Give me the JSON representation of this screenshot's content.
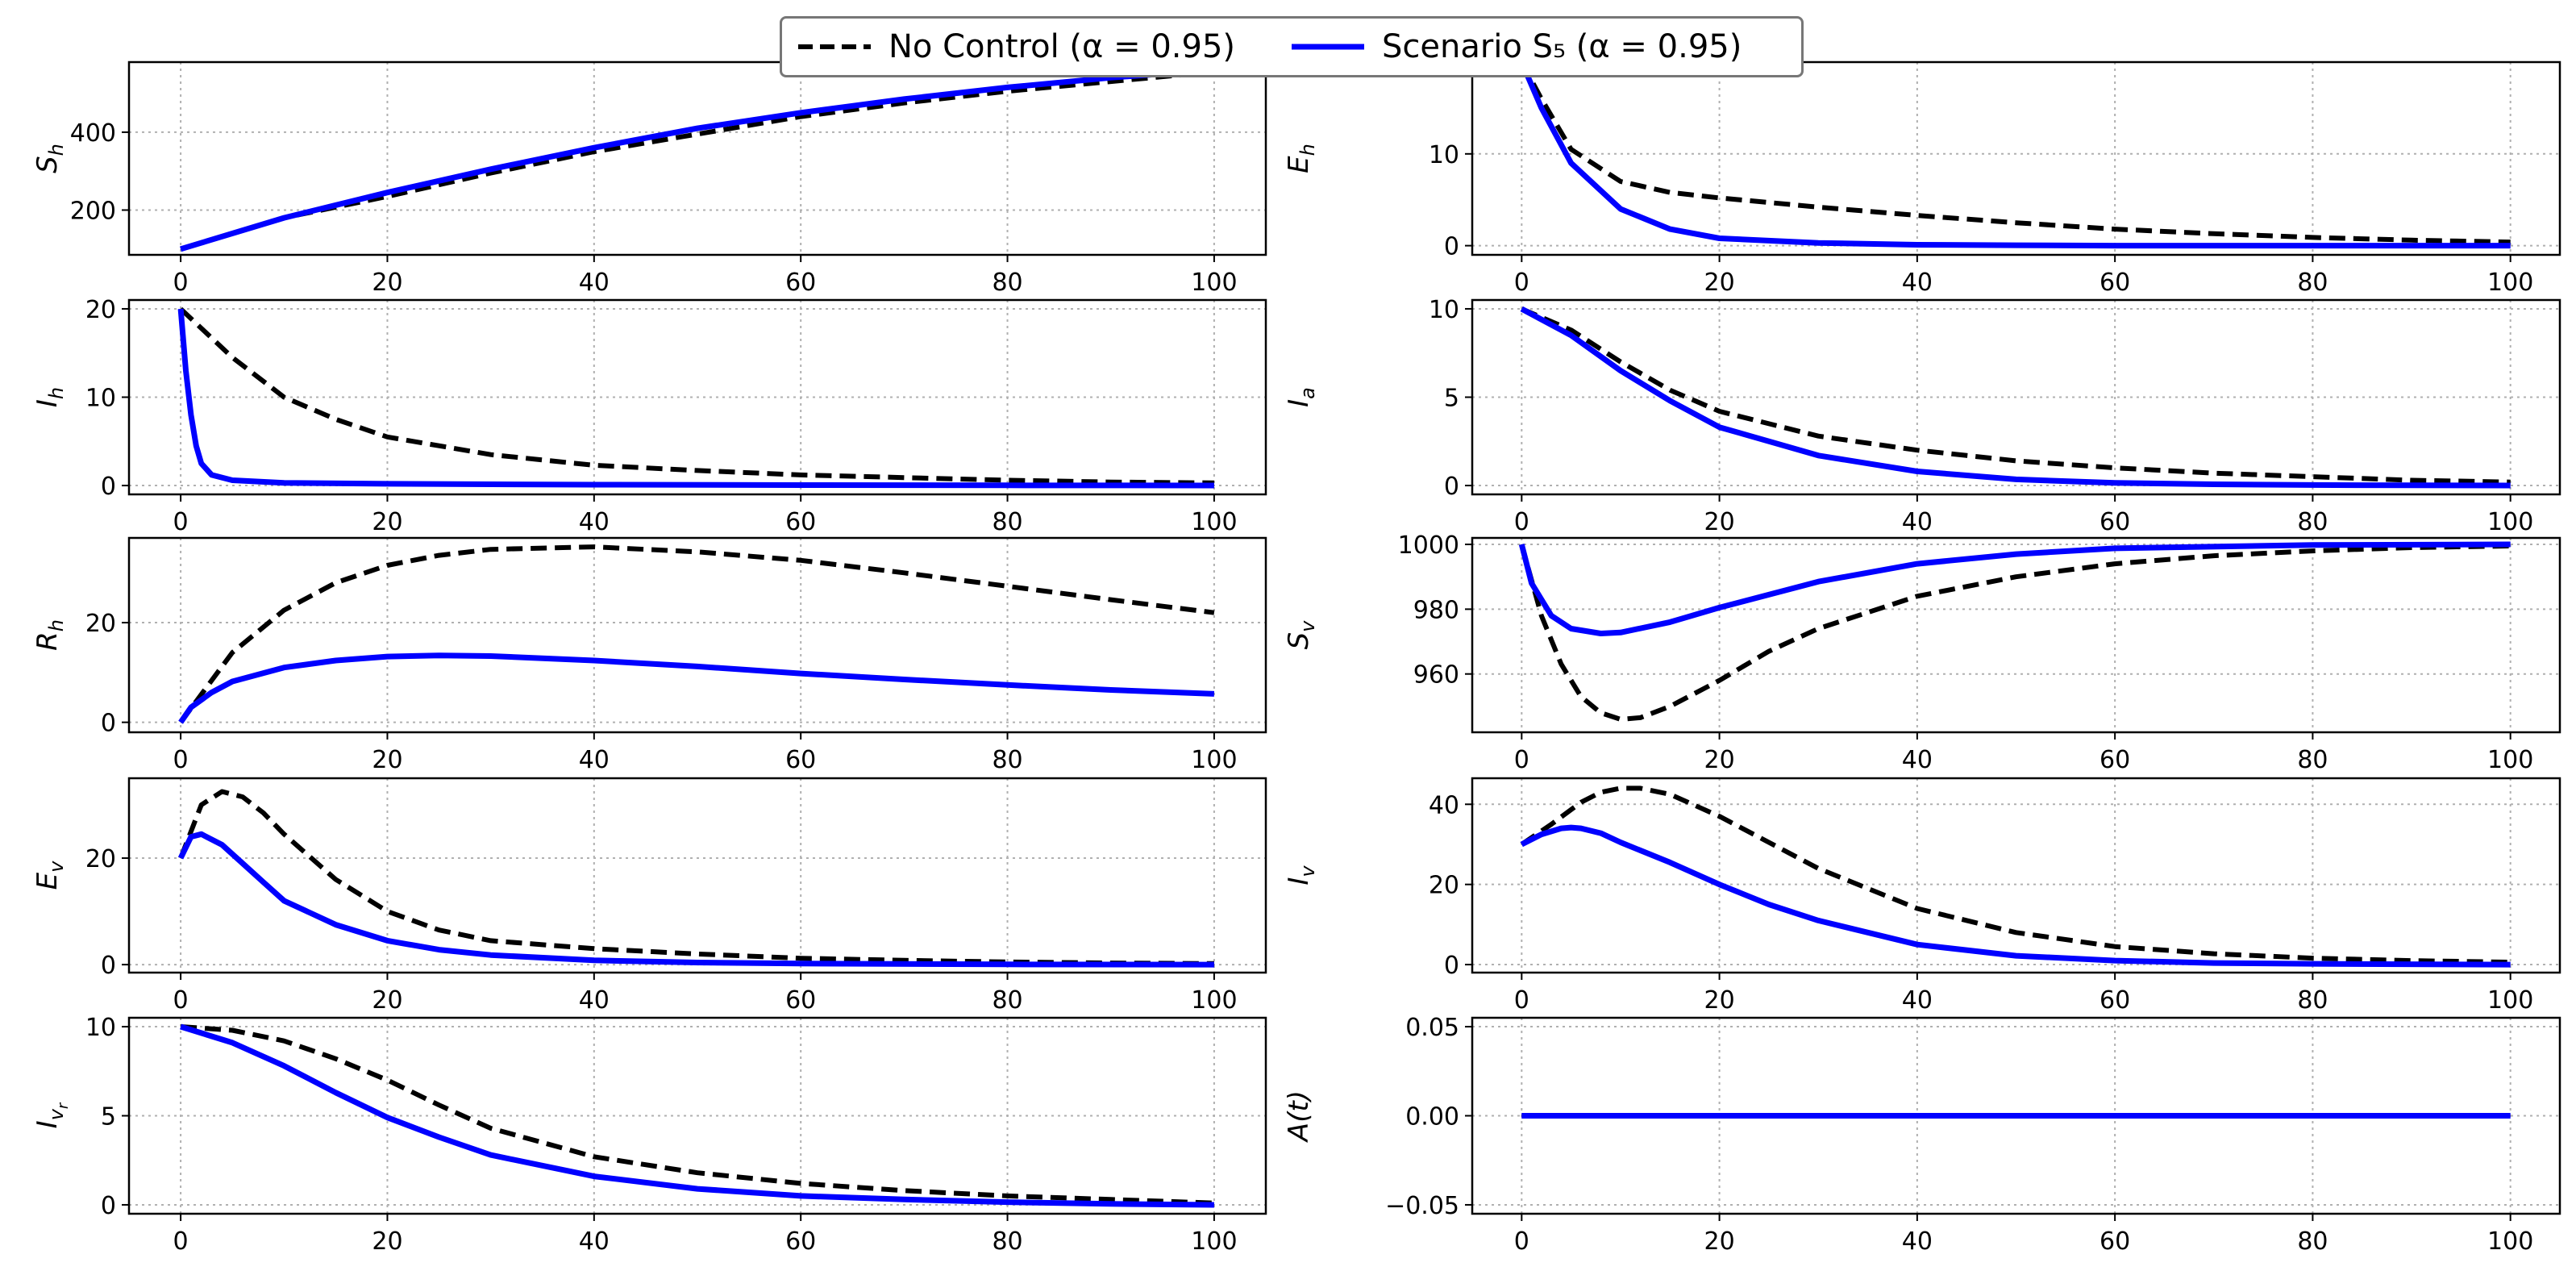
{
  "legend": {
    "series_a": "No Control (α = 0.95)",
    "series_b": "Scenario S₅ (α = 0.95)"
  },
  "colors": {
    "no_control": "#000000",
    "scenario": "#0000ff",
    "grid": "#b0b0b0"
  },
  "chart_data": [
    {
      "type": "line",
      "id": "Sh",
      "ylabel": "S_h",
      "xlim": [
        -5,
        105
      ],
      "ylim": [
        85,
        580
      ],
      "xticks": [
        0,
        20,
        40,
        60,
        80,
        100
      ],
      "yticks": [
        200,
        400
      ],
      "series": [
        {
          "name": "No Control (α = 0.95)",
          "x": [
            0,
            10,
            20,
            30,
            40,
            50,
            60,
            70,
            80,
            90,
            100
          ],
          "y": [
            100,
            180,
            235,
            295,
            350,
            395,
            440,
            475,
            505,
            530,
            555
          ]
        },
        {
          "name": "Scenario S5 (α = 0.95)",
          "x": [
            0,
            10,
            20,
            30,
            40,
            50,
            60,
            70,
            80,
            90,
            100
          ],
          "y": [
            100,
            180,
            245,
            305,
            360,
            410,
            450,
            485,
            515,
            540,
            560
          ]
        }
      ]
    },
    {
      "type": "line",
      "id": "Eh",
      "ylabel": "E_h",
      "xlim": [
        -5,
        105
      ],
      "ylim": [
        -1,
        20
      ],
      "xticks": [
        0,
        20,
        40,
        60,
        80,
        100
      ],
      "yticks": [
        0,
        10
      ],
      "series": [
        {
          "name": "No Control (α = 0.95)",
          "x": [
            0,
            2,
            5,
            10,
            15,
            20,
            30,
            40,
            50,
            60,
            70,
            80,
            90,
            100
          ],
          "y": [
            20,
            16,
            10.5,
            7,
            5.8,
            5.2,
            4.2,
            3.3,
            2.5,
            1.8,
            1.3,
            0.9,
            0.6,
            0.4
          ]
        },
        {
          "name": "Scenario S5 (α = 0.95)",
          "x": [
            0,
            2,
            5,
            10,
            15,
            20,
            30,
            40,
            50,
            60,
            80,
            100
          ],
          "y": [
            20,
            15,
            9,
            4,
            1.8,
            0.8,
            0.3,
            0.1,
            0.05,
            0,
            0,
            0
          ]
        }
      ]
    },
    {
      "type": "line",
      "id": "Ih",
      "ylabel": "I_h",
      "xlim": [
        -5,
        105
      ],
      "ylim": [
        -1,
        21
      ],
      "xticks": [
        0,
        20,
        40,
        60,
        80,
        100
      ],
      "yticks": [
        0,
        10,
        20
      ],
      "series": [
        {
          "name": "No Control (α = 0.95)",
          "x": [
            0,
            5,
            10,
            15,
            20,
            30,
            40,
            50,
            60,
            70,
            80,
            90,
            100
          ],
          "y": [
            20,
            14.5,
            10,
            7.5,
            5.5,
            3.5,
            2.3,
            1.7,
            1.2,
            0.9,
            0.6,
            0.4,
            0.3
          ]
        },
        {
          "name": "Scenario S5 (α = 0.95)",
          "x": [
            0,
            0.5,
            1,
            1.5,
            2,
            3,
            5,
            10,
            20,
            40,
            60,
            80,
            100
          ],
          "y": [
            20,
            13,
            8,
            4.5,
            2.5,
            1.2,
            0.6,
            0.3,
            0.2,
            0.1,
            0.05,
            0.02,
            0
          ]
        }
      ]
    },
    {
      "type": "line",
      "id": "Ia",
      "ylabel": "I_a",
      "xlim": [
        -5,
        105
      ],
      "ylim": [
        -0.5,
        10.5
      ],
      "xticks": [
        0,
        20,
        40,
        60,
        80,
        100
      ],
      "yticks": [
        0,
        5,
        10
      ],
      "series": [
        {
          "name": "No Control (α = 0.95)",
          "x": [
            0,
            5,
            10,
            15,
            20,
            30,
            40,
            50,
            60,
            70,
            80,
            90,
            100
          ],
          "y": [
            10,
            8.8,
            7,
            5.4,
            4.2,
            2.8,
            2,
            1.4,
            1,
            0.7,
            0.5,
            0.3,
            0.2
          ]
        },
        {
          "name": "Scenario S5 (α = 0.95)",
          "x": [
            0,
            5,
            10,
            15,
            20,
            30,
            40,
            50,
            60,
            70,
            80,
            90,
            100
          ],
          "y": [
            10,
            8.5,
            6.5,
            4.8,
            3.3,
            1.7,
            0.8,
            0.35,
            0.15,
            0.07,
            0.03,
            0.01,
            0
          ]
        }
      ]
    },
    {
      "type": "line",
      "id": "Rh",
      "ylabel": "R_h",
      "xlim": [
        -5,
        105
      ],
      "ylim": [
        -2,
        37
      ],
      "xticks": [
        0,
        20,
        40,
        60,
        80,
        100
      ],
      "yticks": [
        0,
        20
      ],
      "series": [
        {
          "name": "No Control (α = 0.95)",
          "x": [
            0,
            5,
            10,
            15,
            20,
            25,
            30,
            40,
            50,
            60,
            70,
            80,
            90,
            100
          ],
          "y": [
            0,
            14,
            22.5,
            28,
            31.5,
            33.5,
            34.7,
            35.2,
            34.2,
            32.5,
            30,
            27.3,
            24.6,
            22
          ]
        },
        {
          "name": "Scenario S5 (α = 0.95)",
          "x": [
            0,
            1,
            3,
            5,
            10,
            15,
            20,
            25,
            30,
            40,
            50,
            60,
            70,
            80,
            90,
            100
          ],
          "y": [
            0,
            3,
            6,
            8.2,
            11,
            12.4,
            13.2,
            13.4,
            13.3,
            12.4,
            11.2,
            9.8,
            8.6,
            7.5,
            6.5,
            5.7
          ]
        }
      ]
    },
    {
      "type": "line",
      "id": "Sv",
      "ylabel": "S_v",
      "xlim": [
        -5,
        105
      ],
      "ylim": [
        942,
        1002
      ],
      "xticks": [
        0,
        20,
        40,
        60,
        80,
        100
      ],
      "yticks": [
        960,
        980,
        1000
      ],
      "series": [
        {
          "name": "No Control (α = 0.95)",
          "x": [
            0,
            2,
            4,
            6,
            8,
            10,
            12,
            15,
            20,
            25,
            30,
            40,
            50,
            60,
            70,
            80,
            90,
            100
          ],
          "y": [
            1000,
            978,
            963,
            953,
            948,
            946,
            946.5,
            950,
            958,
            967,
            974,
            984,
            990,
            994,
            996.5,
            998,
            999,
            999.5
          ]
        },
        {
          "name": "Scenario S5 (α = 0.95)",
          "x": [
            0,
            1,
            3,
            5,
            8,
            10,
            15,
            20,
            30,
            40,
            50,
            60,
            80,
            100
          ],
          "y": [
            1000,
            988,
            978,
            974,
            972.5,
            972.8,
            976,
            980.5,
            988.5,
            994,
            997,
            998.8,
            999.8,
            1000
          ]
        }
      ]
    },
    {
      "type": "line",
      "id": "Ev",
      "ylabel": "E_v",
      "xlim": [
        -5,
        105
      ],
      "ylim": [
        -1.5,
        35
      ],
      "xticks": [
        0,
        20,
        40,
        60,
        80,
        100
      ],
      "yticks": [
        0,
        20
      ],
      "series": [
        {
          "name": "No Control (α = 0.95)",
          "x": [
            0,
            2,
            4,
            6,
            8,
            10,
            15,
            20,
            25,
            30,
            40,
            50,
            60,
            70,
            80,
            90,
            100
          ],
          "y": [
            20,
            30,
            32.5,
            31.5,
            28.5,
            24.5,
            16,
            10,
            6.5,
            4.5,
            3,
            2,
            1.2,
            0.8,
            0.5,
            0.3,
            0.2
          ]
        },
        {
          "name": "Scenario S5 (α = 0.95)",
          "x": [
            0,
            1,
            2,
            4,
            6,
            8,
            10,
            15,
            20,
            25,
            30,
            40,
            50,
            60,
            80,
            100
          ],
          "y": [
            20,
            24,
            24.5,
            22.5,
            19,
            15.5,
            12,
            7.5,
            4.5,
            2.8,
            1.8,
            0.8,
            0.4,
            0.2,
            0.05,
            0
          ]
        }
      ]
    },
    {
      "type": "line",
      "id": "Iv",
      "ylabel": "I_v",
      "xlim": [
        -5,
        105
      ],
      "ylim": [
        -2,
        46.5
      ],
      "xticks": [
        0,
        20,
        40,
        60,
        80,
        100
      ],
      "yticks": [
        0,
        20,
        40
      ],
      "series": [
        {
          "name": "No Control (α = 0.95)",
          "x": [
            0,
            3,
            6,
            8,
            10,
            12,
            15,
            20,
            25,
            30,
            40,
            50,
            60,
            70,
            80,
            90,
            100
          ],
          "y": [
            30,
            35,
            40.5,
            43,
            44,
            44,
            42.5,
            37,
            30.5,
            24,
            14,
            8,
            4.5,
            2.7,
            1.6,
            1,
            0.6
          ]
        },
        {
          "name": "Scenario S5 (α = 0.95)",
          "x": [
            0,
            2,
            4,
            5,
            6,
            8,
            10,
            15,
            20,
            25,
            30,
            40,
            50,
            60,
            70,
            80,
            100
          ],
          "y": [
            30,
            32.5,
            34,
            34.2,
            34,
            32.8,
            30.5,
            25.5,
            20,
            15,
            11,
            5,
            2.2,
            1,
            0.4,
            0.2,
            0
          ]
        }
      ]
    },
    {
      "type": "line",
      "id": "Ivr",
      "ylabel": "I_{v_r}",
      "xlim": [
        -5,
        105
      ],
      "ylim": [
        -0.5,
        10.5
      ],
      "xticks": [
        0,
        20,
        40,
        60,
        80,
        100
      ],
      "yticks": [
        0,
        5,
        10
      ],
      "series": [
        {
          "name": "No Control (α = 0.95)",
          "x": [
            0,
            5,
            10,
            15,
            20,
            25,
            30,
            40,
            50,
            60,
            70,
            80,
            90,
            100
          ],
          "y": [
            10,
            9.8,
            9.2,
            8.2,
            7,
            5.6,
            4.3,
            2.7,
            1.8,
            1.2,
            0.8,
            0.5,
            0.3,
            0.1
          ]
        },
        {
          "name": "Scenario S5 (α = 0.95)",
          "x": [
            0,
            5,
            10,
            15,
            20,
            25,
            30,
            40,
            50,
            60,
            70,
            80,
            90,
            100
          ],
          "y": [
            10,
            9.1,
            7.8,
            6.3,
            4.9,
            3.8,
            2.8,
            1.6,
            0.9,
            0.5,
            0.3,
            0.15,
            0.05,
            0
          ]
        }
      ]
    },
    {
      "type": "line",
      "id": "At",
      "ylabel": "A(t)",
      "xlim": [
        -5,
        105
      ],
      "ylim": [
        -0.055,
        0.055
      ],
      "xticks": [
        0,
        20,
        40,
        60,
        80,
        100
      ],
      "yticks": [
        -0.05,
        0,
        0.05
      ],
      "ytick_labels": [
        "−0.05",
        "0.00",
        "0.05"
      ],
      "series": [
        {
          "name": "No Control (α = 0.95)",
          "x": [
            0,
            100
          ],
          "y": [
            0,
            0
          ]
        },
        {
          "name": "Scenario S5 (α = 0.95)",
          "x": [
            0,
            100
          ],
          "y": [
            0,
            0
          ]
        }
      ]
    }
  ]
}
